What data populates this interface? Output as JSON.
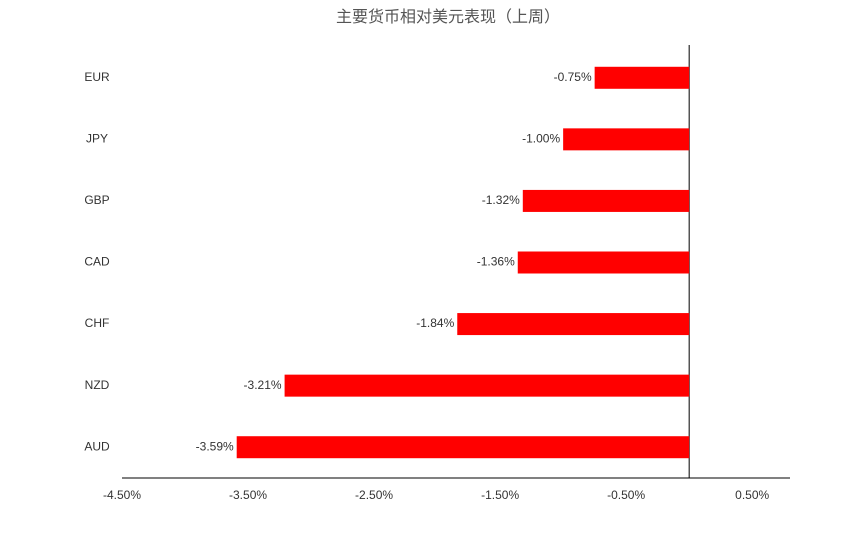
{
  "chart_data": {
    "type": "barh",
    "title": "主要货币相对美元表现（上周）",
    "categories": [
      "EUR",
      "JPY",
      "GBP",
      "CAD",
      "CHF",
      "NZD",
      "AUD"
    ],
    "values": [
      -0.75,
      -1.0,
      -1.32,
      -1.36,
      -1.84,
      -3.21,
      -3.59
    ],
    "value_labels": [
      "-0.75%",
      "-1.00%",
      "-1.32%",
      "-1.36%",
      "-1.84%",
      "-3.21%",
      "-3.59%"
    ],
    "color": "#ff0000",
    "xlim": [
      -4.5,
      0.8
    ],
    "xticks": [
      {
        "value": -4.5,
        "label": "-4.50%"
      },
      {
        "value": -3.5,
        "label": "-3.50%"
      },
      {
        "value": -2.5,
        "label": "-2.50%"
      },
      {
        "value": -1.5,
        "label": "-1.50%"
      },
      {
        "value": -0.5,
        "label": "-0.50%"
      },
      {
        "value": 0.5,
        "label": "0.50%"
      }
    ],
    "grid": false
  }
}
